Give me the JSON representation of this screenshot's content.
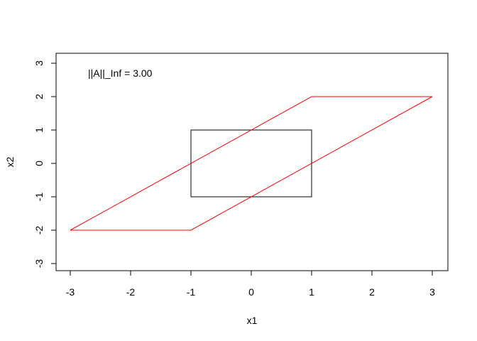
{
  "chart_data": {
    "type": "line",
    "xlabel": "x1",
    "ylabel": "x2",
    "xlim": [
      -3,
      3
    ],
    "ylim": [
      -3,
      3
    ],
    "x_ticks": [
      "-3",
      "-2",
      "-1",
      "0",
      "1",
      "2",
      "3"
    ],
    "y_ticks": [
      "-3",
      "-2",
      "-1",
      "0",
      "1",
      "2",
      "3"
    ],
    "annotation": "||A||_Inf = 3.00",
    "grid": false,
    "series": [
      {
        "color": "#000000",
        "points": [
          [
            -1,
            -1
          ],
          [
            1,
            -1
          ],
          [
            1,
            1
          ],
          [
            -1,
            1
          ],
          [
            -1,
            -1
          ]
        ]
      },
      {
        "color": "#ff0000",
        "points": [
          [
            -3,
            -2
          ],
          [
            -1,
            -2
          ],
          [
            3,
            2
          ],
          [
            1,
            2
          ],
          [
            -3,
            -2
          ]
        ]
      }
    ]
  }
}
